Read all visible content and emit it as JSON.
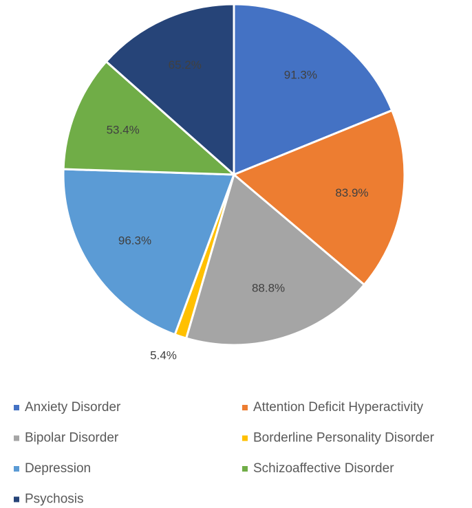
{
  "chart_data": {
    "type": "pie",
    "categories": [
      "Anxiety Disorder",
      "Attention Deficit Hyperactivity",
      "Bipolar Disorder",
      "Borderline Personality Disorder",
      "Depression",
      "Schizoaffective Disorder",
      "Psychosis"
    ],
    "values": [
      91.3,
      83.9,
      88.8,
      5.4,
      96.3,
      53.4,
      65.2
    ],
    "value_labels": [
      "91.3%",
      "83.9%",
      "88.8%",
      "5.4%",
      "96.3%",
      "53.4%",
      "65.2%"
    ],
    "colors": [
      "#4472c4",
      "#ed7d31",
      "#a5a5a5",
      "#ffc000",
      "#5b9bd5",
      "#70ad47",
      "#264478"
    ],
    "legend": "bottom"
  }
}
